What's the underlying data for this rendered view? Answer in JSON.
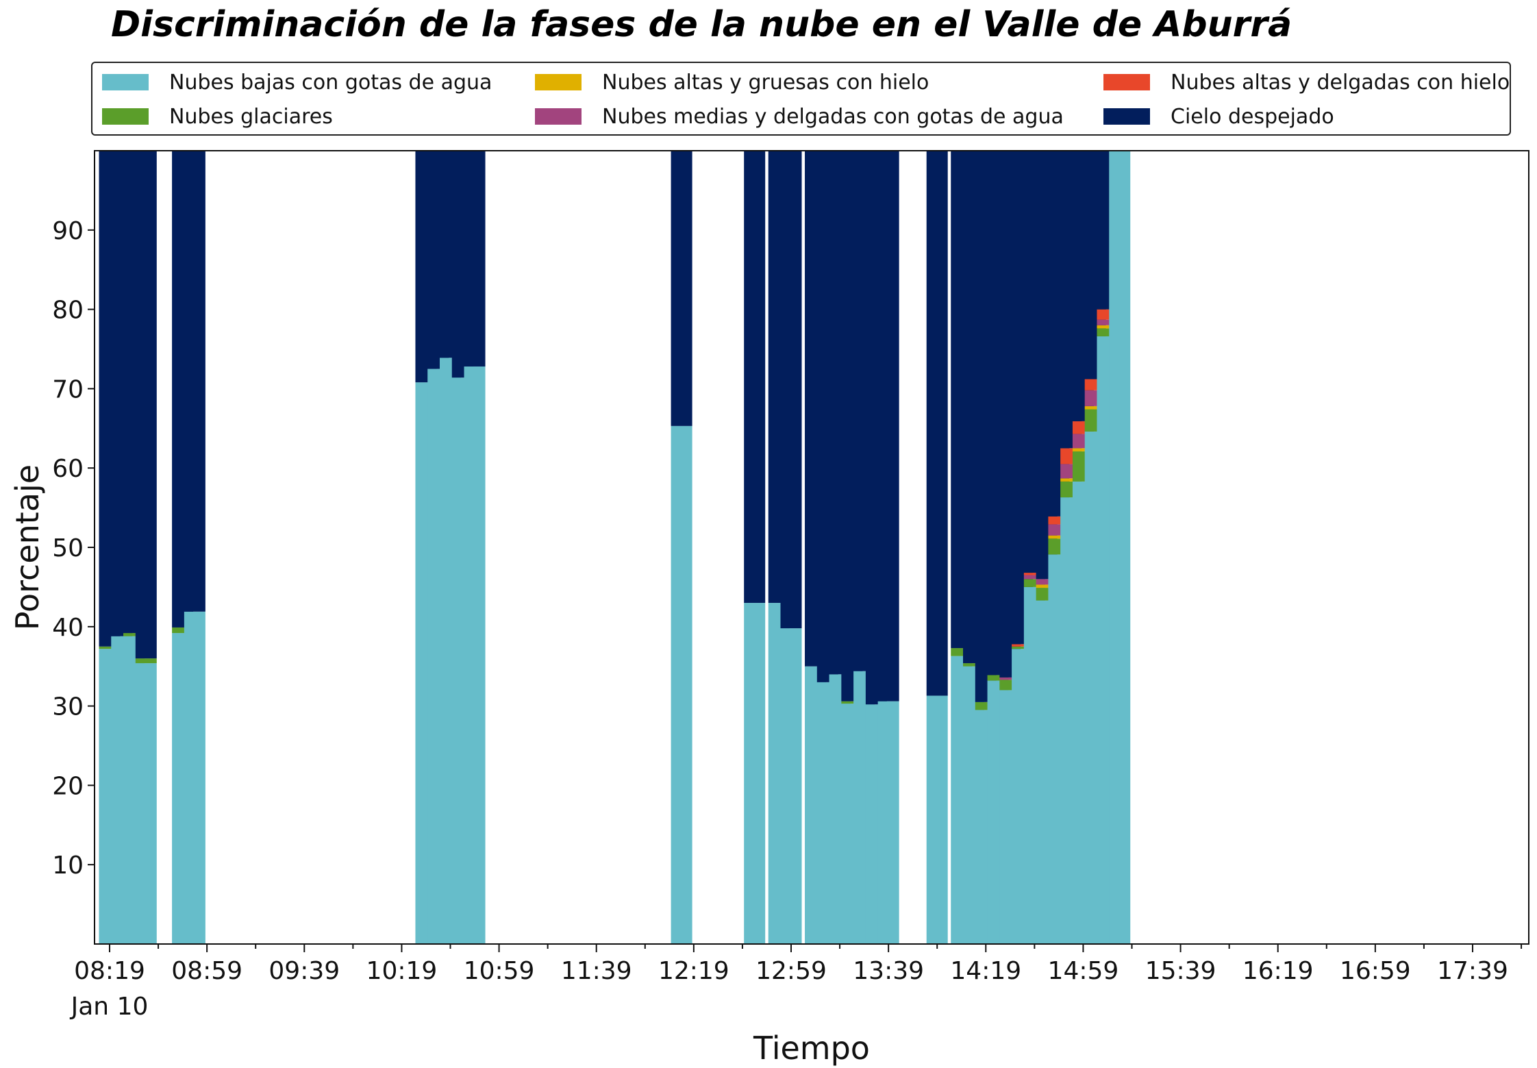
{
  "title": "Discriminación de la fases de la nube en el Valle de Aburrá",
  "chart_data": {
    "type": "bar",
    "stacked": true,
    "title": "Discriminación de la fases de la nube en el Valle de Aburrá",
    "xlabel": "Tiempo",
    "ylabel": "Porcentaje",
    "ylim": [
      0,
      100
    ],
    "yticks": [
      10,
      20,
      30,
      40,
      50,
      60,
      70,
      80,
      90
    ],
    "xticks": [
      "08:19",
      "08:59",
      "09:39",
      "10:19",
      "10:59",
      "11:39",
      "12:19",
      "12:59",
      "13:39",
      "14:19",
      "14:59",
      "15:39",
      "16:19",
      "16:59",
      "17:39"
    ],
    "xticks_date": "Jan 10",
    "legend_position": "top",
    "grid": false,
    "x": [
      "08:19",
      "08:24",
      "08:29",
      "08:34",
      "08:49",
      "08:54",
      "10:29",
      "10:34",
      "10:39",
      "10:44",
      "10:49",
      "12:14",
      "12:44",
      "12:54",
      "12:59",
      "13:09",
      "13:14",
      "13:19",
      "13:24",
      "13:29",
      "13:34",
      "13:39",
      "13:59",
      "14:09",
      "14:14",
      "14:19",
      "14:24",
      "14:29",
      "14:34",
      "14:39",
      "14:44",
      "14:49",
      "14:54",
      "14:59",
      "15:04",
      "15:09",
      "15:14"
    ],
    "series": [
      {
        "name": "Nubes bajas con gotas de agua",
        "color": "#66bdca",
        "values": [
          37.2,
          38.8,
          38.8,
          35.4,
          39.2,
          41.9,
          70.8,
          72.5,
          73.9,
          71.4,
          72.8,
          65.3,
          43.0,
          43.0,
          39.8,
          35.0,
          33.0,
          34.0,
          30.3,
          34.4,
          30.2,
          30.6,
          31.3,
          36.3,
          35.0,
          29.5,
          33.2,
          32.0,
          37.2,
          45.0,
          43.3,
          49.1,
          56.3,
          58.3,
          64.6,
          76.6,
          100
        ]
      },
      {
        "name": "Nubes glaciares",
        "color": "#5b9e2a",
        "values": [
          0.3,
          0,
          0.4,
          0.6,
          0.7,
          0,
          0,
          0,
          0,
          0,
          0,
          0,
          0,
          0,
          0,
          0,
          0,
          0,
          0.3,
          0,
          0,
          0,
          0,
          1.0,
          0.4,
          1.0,
          0.7,
          1.3,
          0.3,
          1.0,
          1.6,
          2.0,
          2.0,
          3.8,
          2.8,
          1.0,
          0
        ]
      },
      {
        "name": "Nubes altas y gruesas con hielo",
        "color": "#e0b000",
        "values": [
          0,
          0,
          0,
          0,
          0,
          0,
          0,
          0,
          0,
          0,
          0,
          0,
          0,
          0,
          0,
          0,
          0,
          0,
          0,
          0,
          0,
          0,
          0,
          0,
          0,
          0,
          0,
          0,
          0,
          0,
          0.4,
          0.4,
          0.4,
          0.4,
          0.4,
          0.4,
          0
        ]
      },
      {
        "name": "Nubes medias y delgadas con gotas de agua",
        "color": "#a2447e",
        "values": [
          0,
          0,
          0,
          0,
          0,
          0,
          0,
          0,
          0,
          0,
          0,
          0,
          0,
          0,
          0,
          0,
          0,
          0,
          0,
          0,
          0,
          0,
          0,
          0,
          0,
          0,
          0,
          0.3,
          0,
          0.5,
          0.7,
          1.4,
          1.8,
          1.8,
          2.0,
          0.7,
          0
        ]
      },
      {
        "name": "Nubes altas y delgadas con hielo",
        "color": "#e8472a",
        "values": [
          0,
          0,
          0,
          0,
          0,
          0,
          0,
          0,
          0,
          0,
          0,
          0,
          0,
          0,
          0,
          0,
          0,
          0,
          0,
          0,
          0,
          0,
          0,
          0,
          0,
          0,
          0,
          0,
          0.3,
          0.3,
          0,
          1.0,
          2.0,
          1.6,
          1.4,
          1.3,
          0
        ]
      },
      {
        "name": "Cielo despejado",
        "color": "#021e5c",
        "values": [
          62.5,
          61.2,
          60.8,
          64.0,
          60.1,
          58.1,
          29.2,
          27.5,
          26.1,
          28.6,
          27.2,
          34.7,
          57.0,
          57.0,
          60.2,
          65.0,
          67.0,
          66.0,
          69.4,
          65.6,
          69.8,
          69.4,
          68.7,
          62.7,
          64.6,
          69.5,
          66.1,
          66.4,
          62.2,
          53.2,
          54.0,
          46.1,
          37.5,
          34.1,
          28.8,
          20.0,
          0
        ]
      }
    ]
  }
}
